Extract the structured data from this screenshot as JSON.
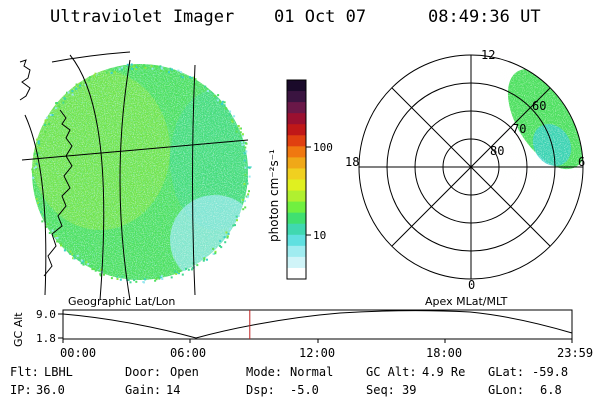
{
  "header": {
    "title": "Ultraviolet Imager",
    "date": "01 Oct 07",
    "time": "08:49:36 UT"
  },
  "colorbar": {
    "unit_label": "photon cm⁻²s⁻¹",
    "ticks": [
      "100",
      "10"
    ],
    "colors": [
      "#1a0a2a",
      "#3a1440",
      "#6a1848",
      "#9a1030",
      "#c01818",
      "#e04010",
      "#f07810",
      "#f0a818",
      "#f0d020",
      "#e0f020",
      "#b0f030",
      "#70f040",
      "#40e070",
      "#40d8b0",
      "#60e0e0",
      "#a0ecf0",
      "#d0f4f8",
      "#ffffff"
    ]
  },
  "left_panel": {
    "caption": "Geographic Lat/Lon",
    "map_label": "",
    "grid_color": "#000000",
    "aurora_colors": [
      "#4ee060",
      "#60e050",
      "#8ee840",
      "#40d890",
      "#38d0c8",
      "#9ae8f0"
    ]
  },
  "right_panel": {
    "caption": "Apex MLat/MLT",
    "mlt_labels": [
      "12",
      "18",
      "6",
      "0"
    ],
    "lat_labels": [
      "60",
      "70",
      "80"
    ]
  },
  "altitude_plot": {
    "y_axis_title": "GC Alt",
    "y_ticks": [
      "9.0",
      "1.8"
    ],
    "x_ticks": [
      "00:00",
      "06:00",
      "12:00",
      "18:00",
      "23:59"
    ],
    "current_time_fraction": 0.367,
    "marker_color": "#c02020"
  },
  "status": {
    "row1": [
      {
        "label": "Flt:",
        "value": "LBHL"
      },
      {
        "label": "Door:",
        "value": "Open"
      },
      {
        "label": "Mode:",
        "value": "Normal"
      },
      {
        "label": "GC Alt:",
        "value": "4.9 Re"
      },
      {
        "label": "GLat:",
        "value": "-59.8"
      }
    ],
    "row2": [
      {
        "label": "IP:",
        "value": "36.0"
      },
      {
        "label": "Gain:",
        "value": "14"
      },
      {
        "label": "Dsp:",
        "value": "-5.0"
      },
      {
        "label": "Seq:",
        "value": "39"
      },
      {
        "label": "GLon:",
        "value": "6.8"
      }
    ]
  }
}
